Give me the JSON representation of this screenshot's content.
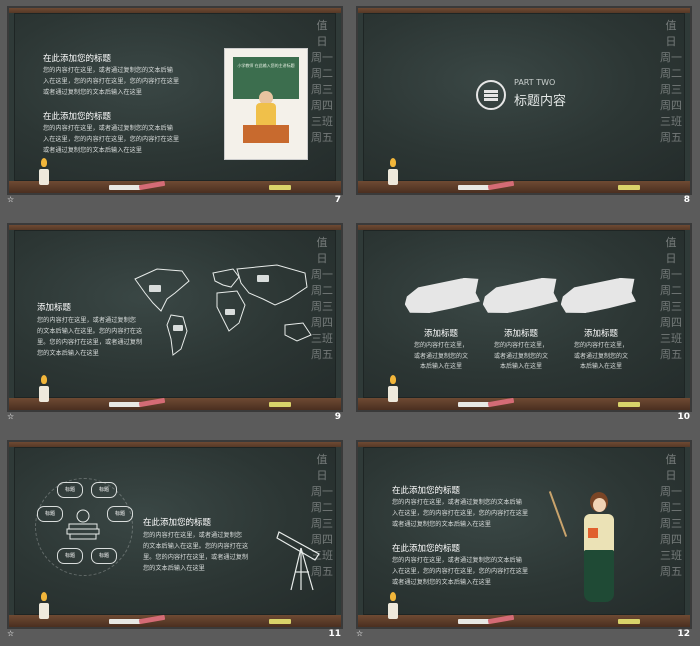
{
  "slides": [
    {
      "number": "7",
      "title1": "在此添加您的标题",
      "body1a": "您的内容打在这里，或者通过复制您的文本后输",
      "body1b": "入在这里，您的内容打在这里，您的内容打在这里",
      "body1c": "或者通过复制您的文本后输入在这里",
      "title2": "在此添加您的标题",
      "body2a": "您的内容打在这里，或者通过复制您的文本后输",
      "body2b": "入在这里，您的内容打在这里，您的内容打在这里",
      "body2c": "或者通过复制您的文本后输入在这里",
      "card_text": "小学教师 在此输入您的主讲标题"
    },
    {
      "number": "8",
      "kicker": "PART TWO",
      "title": "标题内容"
    },
    {
      "number": "9",
      "title": "添加标题",
      "body_a": "您的内容打在这里，或者通过复制您",
      "body_b": "的文本后输入在这里。您的内容打在这",
      "body_c": "里。您的内容打在这里，或者通过复制",
      "body_d": "您的文本后输入在这里"
    },
    {
      "number": "10",
      "columns": [
        {
          "title": "添加标题",
          "line1": "您的内容打在这里，",
          "line2": "或者通过复制您的文",
          "line3": "本后输入在这里"
        },
        {
          "title": "添加标题",
          "line1": "您的内容打在这里，",
          "line2": "或者通过复制您的文",
          "line3": "本后输入在这里"
        },
        {
          "title": "添加标题",
          "line1": "您的内容打在这里，",
          "line2": "或者通过复制您的文",
          "line3": "本后输入在这里"
        }
      ]
    },
    {
      "number": "11",
      "title": "在此添加您的标题",
      "body_a": "您的内容打在这里，或者通过复制您",
      "body_b": "的文本后输入在这里。您的内容打在这",
      "body_c": "里。您的内容打在这里，或者通过复制",
      "body_d": "您的文本后输入在这里",
      "segment_label": "标题"
    },
    {
      "number": "12",
      "title1": "在此添加您的标题",
      "body1a": "您的内容打在这里，或者通过复制您的文本后输",
      "body1b": "入在这里，您的内容打在这里，您的内容打在这里",
      "body1c": "或者通过复制您的文本后输入在这里",
      "title2": "在此添加您的标题",
      "body2a": "您的内容打在这里，或者通过复制您的文本后输",
      "body2b": "入在这里，您的内容打在这里，您的内容打在这里",
      "body2c": "或者通过复制您的文本后输入在这里"
    }
  ],
  "side_deco": [
    "值",
    "日",
    "周一",
    "周二",
    "周三",
    "周四",
    "三班",
    "周五"
  ],
  "footer_icon": "star-icon"
}
